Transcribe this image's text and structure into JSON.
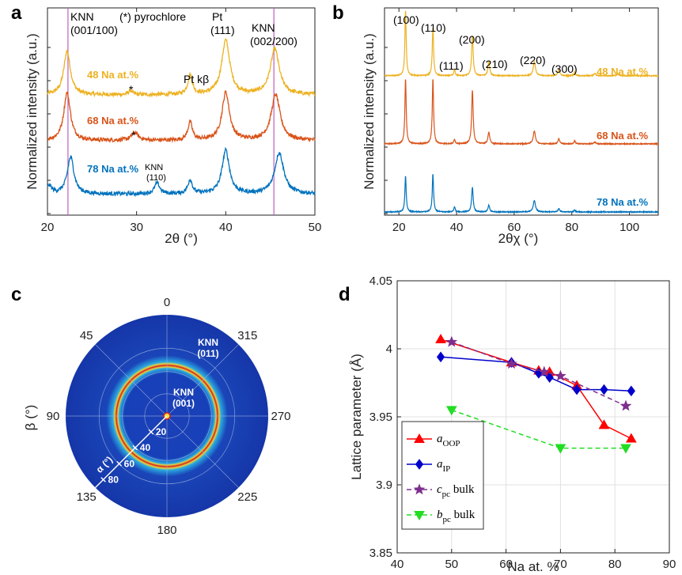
{
  "colors": {
    "yellow": "#EDB120",
    "orange": "#D95319",
    "blue": "#0072BD",
    "marker_line": "#C060C0",
    "red": "#FF0000",
    "navy": "#0000CC",
    "purple": "#7E2F8E",
    "green": "#22DD22"
  },
  "panel_labels": {
    "a": "a",
    "b": "b",
    "c": "c",
    "d": "d"
  },
  "chart_data": [
    {
      "panel": "a",
      "type": "line",
      "xlabel": "2θ (°)",
      "ylabel": "Normalized intensity (a.u.)",
      "xlim": [
        20,
        50
      ],
      "xticks": [
        "20",
        "30",
        "40",
        "50"
      ],
      "vertical_markers": [
        22.3,
        45.4
      ],
      "series": [
        {
          "name": "48 Na at.%",
          "offset": 2.05,
          "baseline": 0.35,
          "peaks": [
            [
              22.2,
              1.0,
              0.45
            ],
            [
              29.3,
              0.1,
              0.25
            ],
            [
              36.0,
              0.45,
              0.3
            ],
            [
              40.0,
              1.25,
              0.55
            ],
            [
              45.5,
              1.05,
              0.6
            ]
          ]
        },
        {
          "name": "68 Na at.%",
          "offset": 1.05,
          "baseline": 0.3,
          "peaks": [
            [
              22.2,
              1.1,
              0.45
            ],
            [
              29.8,
              0.18,
              0.45
            ],
            [
              36.0,
              0.42,
              0.3
            ],
            [
              40.0,
              1.1,
              0.5
            ],
            [
              45.6,
              1.05,
              0.6
            ]
          ]
        },
        {
          "name": "78 Na at.%",
          "offset": 0.0,
          "baseline": 0.12,
          "peaks": [
            [
              20.2,
              0.18,
              0.35
            ],
            [
              22.6,
              0.85,
              0.45
            ],
            [
              32.3,
              0.25,
              0.35
            ],
            [
              36.0,
              0.32,
              0.3
            ],
            [
              40.0,
              1.0,
              0.5
            ],
            [
              46.0,
              0.95,
              0.6
            ]
          ]
        }
      ],
      "annotations": {
        "knn_left": [
          "KNN",
          "(001/100)"
        ],
        "pyrochlore": "(*) pyrochlore",
        "pt111": [
          "Pt",
          "(111)"
        ],
        "knn_right": [
          "KNN",
          "(002/200)"
        ],
        "pt_kb": "Pt kβ",
        "knn110": [
          "KNN",
          "(110)"
        ],
        "star": "*"
      }
    },
    {
      "panel": "b",
      "type": "line",
      "xlabel": "2θχ (°)",
      "ylabel": "Normalized intensity (a.u.)",
      "xlim": [
        15,
        110
      ],
      "xticks": [
        "20",
        "40",
        "60",
        "80",
        "100"
      ],
      "series": [
        {
          "name": "48 Na at.%",
          "offset": 2.1,
          "baseline": 0.0,
          "peaks": [
            [
              22.3,
              1.0,
              0.3
            ],
            [
              31.8,
              0.75,
              0.3
            ],
            [
              39.3,
              0.1,
              0.3
            ],
            [
              45.5,
              0.62,
              0.35
            ],
            [
              51.2,
              0.22,
              0.4
            ],
            [
              67.0,
              0.22,
              0.5
            ],
            [
              75.5,
              0.1,
              0.4
            ],
            [
              81.0,
              0.06,
              0.3
            ],
            [
              88.0,
              0.04,
              0.4
            ],
            [
              96.0,
              0.03,
              0.4
            ]
          ]
        },
        {
          "name": "68 Na at.%",
          "offset": 1.05,
          "baseline": 0.0,
          "peaks": [
            [
              22.3,
              1.0,
              0.3
            ],
            [
              31.8,
              1.0,
              0.3
            ],
            [
              39.3,
              0.07,
              0.3
            ],
            [
              45.5,
              0.82,
              0.35
            ],
            [
              51.2,
              0.18,
              0.4
            ],
            [
              67.0,
              0.2,
              0.5
            ],
            [
              75.5,
              0.08,
              0.4
            ],
            [
              81.0,
              0.05,
              0.3
            ],
            [
              88.0,
              0.03,
              0.4
            ]
          ]
        },
        {
          "name": "78 Na at.%",
          "offset": 0.0,
          "baseline": 0.0,
          "peaks": [
            [
              22.3,
              0.55,
              0.3
            ],
            [
              31.8,
              0.58,
              0.3
            ],
            [
              39.3,
              0.08,
              0.3
            ],
            [
              45.5,
              0.38,
              0.35
            ],
            [
              51.2,
              0.1,
              0.4
            ],
            [
              67.0,
              0.18,
              0.5
            ],
            [
              75.5,
              0.05,
              0.4
            ],
            [
              81.0,
              0.03,
              0.3
            ]
          ]
        }
      ],
      "peak_labels": [
        "(100)",
        "(110)",
        "(111)",
        "(200)",
        "(210)",
        "(220)",
        "(300)"
      ]
    },
    {
      "panel": "c",
      "type": "heatmap",
      "title": "",
      "ylabel": "β (°)",
      "angle_labels": [
        "0",
        "45",
        "90",
        "135",
        "180",
        "225",
        "270",
        "315"
      ],
      "alpha_label": "α (°)",
      "alpha_ticks": [
        "20",
        "40",
        "60",
        "80"
      ],
      "ring_labels": {
        "outer": [
          "KNN",
          "(011)"
        ],
        "center": [
          "KNN",
          "(001)"
        ]
      },
      "ring_alpha_deg": 45,
      "max_alpha_deg": 90
    },
    {
      "panel": "d",
      "type": "line",
      "xlabel": "Na at. %",
      "ylabel": "Lattice parameter (Å)",
      "xlim": [
        40,
        90
      ],
      "ylim": [
        3.85,
        4.05
      ],
      "xticks": [
        "40",
        "50",
        "60",
        "70",
        "80",
        "90"
      ],
      "yticks": [
        "3.85",
        "3.9",
        "3.95",
        "4",
        "4.05"
      ],
      "grid": true,
      "legend_position": "bottom-left",
      "series": [
        {
          "name": "a_OOP",
          "legend_main": "a",
          "legend_sub": "OOP",
          "legend_suffix": "",
          "marker": "triangle-up",
          "dash": "solid",
          "color_key": "red",
          "x": [
            48,
            61,
            66,
            68,
            73,
            78,
            83
          ],
          "y": [
            4.007,
            3.99,
            3.984,
            3.983,
            3.973,
            3.944,
            3.934
          ]
        },
        {
          "name": "a_IP",
          "legend_main": "a",
          "legend_sub": "IP",
          "legend_suffix": "",
          "marker": "diamond",
          "dash": "solid",
          "color_key": "navy",
          "x": [
            48,
            61,
            66,
            68,
            73,
            78,
            83
          ],
          "y": [
            3.994,
            3.99,
            3.982,
            3.979,
            3.97,
            3.97,
            3.969
          ]
        },
        {
          "name": "c_pc bulk",
          "legend_main": "c",
          "legend_sub": "pc",
          "legend_suffix": " bulk",
          "marker": "star",
          "dash": "dashed",
          "color_key": "purple",
          "x": [
            50,
            61,
            67,
            70,
            82
          ],
          "y": [
            4.005,
            3.989,
            3.983,
            3.98,
            3.958
          ]
        },
        {
          "name": "b_pc bulk",
          "legend_main": "b",
          "legend_sub": "pc",
          "legend_suffix": " bulk",
          "marker": "triangle-down",
          "dash": "dashed",
          "color_key": "green",
          "x": [
            50,
            70,
            82
          ],
          "y": [
            3.955,
            3.927,
            3.927
          ]
        }
      ]
    }
  ]
}
